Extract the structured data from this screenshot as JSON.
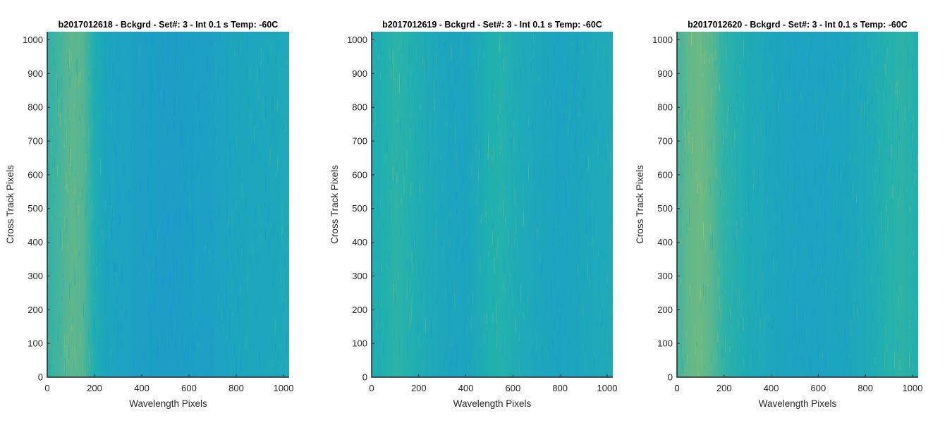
{
  "chart_data": [
    {
      "type": "heatmap",
      "title": "b2017012618 - Bckgrd - Set#: 3 - Int 0.1 s Temp: -60C",
      "xlabel": "Wavelength Pixels",
      "ylabel": "Cross Track Pixels",
      "xlim": [
        0,
        1024
      ],
      "ylim": [
        0,
        1024
      ],
      "xticks": [
        0,
        200,
        400,
        600,
        800,
        1000
      ],
      "yticks": [
        0,
        100,
        200,
        300,
        400,
        500,
        600,
        700,
        800,
        900,
        1000
      ],
      "colormap": "parula",
      "colors": {
        "low": "#1a8fd8",
        "mid": "#1fb0b0",
        "high": "#b9c25a"
      },
      "column_profile": {
        "x": [
          0,
          50,
          100,
          150,
          200,
          250,
          300,
          400,
          500,
          600,
          700,
          800,
          900,
          1024
        ],
        "level": [
          0.55,
          0.62,
          0.7,
          0.68,
          0.45,
          0.32,
          0.3,
          0.25,
          0.22,
          0.24,
          0.28,
          0.33,
          0.35,
          0.38
        ]
      }
    },
    {
      "type": "heatmap",
      "title": "b2017012619 - Bckgrd - Set#: 3 - Int 0.1 s Temp: -60C",
      "xlabel": "Wavelength Pixels",
      "ylabel": "Cross Track Pixels",
      "xlim": [
        0,
        1024
      ],
      "ylim": [
        0,
        1024
      ],
      "xticks": [
        0,
        200,
        400,
        600,
        800,
        1000
      ],
      "yticks": [
        0,
        100,
        200,
        300,
        400,
        500,
        600,
        700,
        800,
        900,
        1000
      ],
      "colormap": "parula",
      "colors": {
        "low": "#1a8fd8",
        "mid": "#1fb0b0",
        "high": "#b9c25a"
      },
      "column_profile": {
        "x": [
          0,
          50,
          100,
          150,
          200,
          300,
          400,
          450,
          500,
          550,
          600,
          700,
          800,
          900,
          1024
        ],
        "level": [
          0.45,
          0.5,
          0.55,
          0.52,
          0.45,
          0.35,
          0.3,
          0.4,
          0.5,
          0.52,
          0.45,
          0.35,
          0.3,
          0.35,
          0.42
        ]
      }
    },
    {
      "type": "heatmap",
      "title": "b2017012620 - Bckgrd - Set#: 3 - Int 0.1 s Temp: -60C",
      "xlabel": "Wavelength Pixels",
      "ylabel": "Cross Track Pixels",
      "xlim": [
        0,
        1024
      ],
      "ylim": [
        0,
        1024
      ],
      "xticks": [
        0,
        200,
        400,
        600,
        800,
        1000
      ],
      "yticks": [
        0,
        100,
        200,
        300,
        400,
        500,
        600,
        700,
        800,
        900,
        1000
      ],
      "colormap": "parula",
      "colors": {
        "low": "#1a8fd8",
        "mid": "#1fb0b0",
        "high": "#b9c25a"
      },
      "column_profile": {
        "x": [
          0,
          50,
          100,
          150,
          200,
          300,
          400,
          500,
          600,
          700,
          800,
          900,
          950,
          1024
        ],
        "level": [
          0.6,
          0.72,
          0.75,
          0.68,
          0.55,
          0.42,
          0.35,
          0.3,
          0.3,
          0.32,
          0.4,
          0.52,
          0.55,
          0.5
        ]
      }
    }
  ]
}
